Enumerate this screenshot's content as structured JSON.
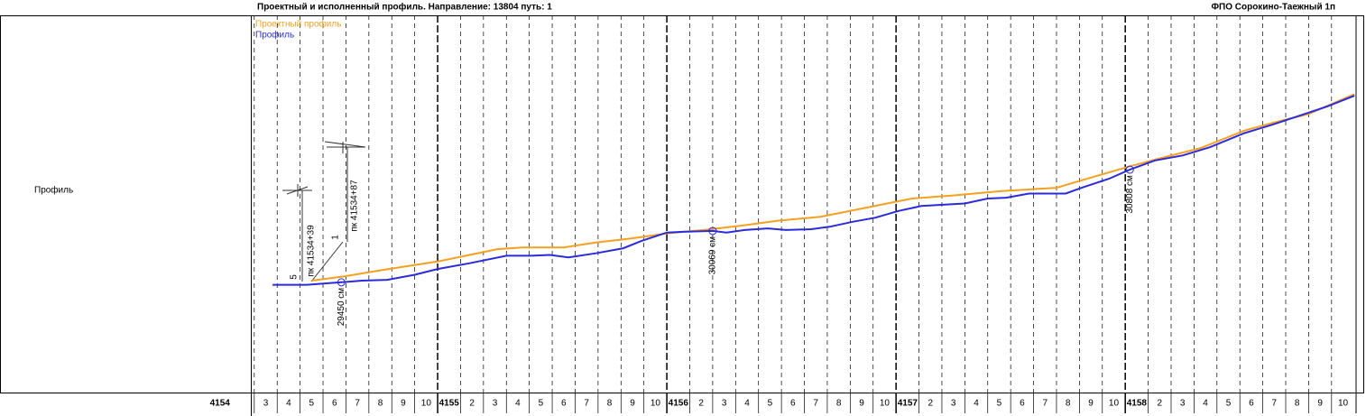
{
  "chart_data": {
    "type": "line",
    "title": "Проектный и исполненный профиль. Направление: 13804 путь: 1",
    "subtitle": "ФПО Сорокино-Таежный 1п",
    "row_label": "Профиль",
    "xlim": [
      1.85,
      50.07
    ],
    "ylim": [
      28120,
      32670
    ],
    "xticks": [
      {
        "value": 0,
        "label": "4154"
      },
      {
        "value": 2,
        "label": "3"
      },
      {
        "value": 3,
        "label": "4"
      },
      {
        "value": 4,
        "label": "5"
      },
      {
        "value": 5,
        "label": "6"
      },
      {
        "value": 6,
        "label": "7"
      },
      {
        "value": 7,
        "label": "8"
      },
      {
        "value": 8,
        "label": "9"
      },
      {
        "value": 9,
        "label": "10"
      },
      {
        "value": 10,
        "label": "4155"
      },
      {
        "value": 11,
        "label": "2"
      },
      {
        "value": 12,
        "label": "3"
      },
      {
        "value": 13,
        "label": "4"
      },
      {
        "value": 14,
        "label": "5"
      },
      {
        "value": 15,
        "label": "6"
      },
      {
        "value": 16,
        "label": "7"
      },
      {
        "value": 17,
        "label": "8"
      },
      {
        "value": 18,
        "label": "9"
      },
      {
        "value": 19,
        "label": "10"
      },
      {
        "value": 20,
        "label": "4156"
      },
      {
        "value": 21,
        "label": "2"
      },
      {
        "value": 22,
        "label": "3"
      },
      {
        "value": 23,
        "label": "4"
      },
      {
        "value": 24,
        "label": "5"
      },
      {
        "value": 25,
        "label": "6"
      },
      {
        "value": 26,
        "label": "7"
      },
      {
        "value": 27,
        "label": "8"
      },
      {
        "value": 28,
        "label": "9"
      },
      {
        "value": 29,
        "label": "10"
      },
      {
        "value": 30,
        "label": "4157"
      },
      {
        "value": 31,
        "label": "2"
      },
      {
        "value": 32,
        "label": "3"
      },
      {
        "value": 33,
        "label": "4"
      },
      {
        "value": 34,
        "label": "5"
      },
      {
        "value": 35,
        "label": "6"
      },
      {
        "value": 36,
        "label": "7"
      },
      {
        "value": 37,
        "label": "8"
      },
      {
        "value": 38,
        "label": "9"
      },
      {
        "value": 39,
        "label": "10"
      },
      {
        "value": 40,
        "label": "4158"
      },
      {
        "value": 41,
        "label": "2"
      },
      {
        "value": 42,
        "label": "3"
      },
      {
        "value": 43,
        "label": "4"
      },
      {
        "value": 44,
        "label": "5"
      },
      {
        "value": 45,
        "label": "6"
      },
      {
        "value": 46,
        "label": "7"
      },
      {
        "value": 47,
        "label": "8"
      },
      {
        "value": 48,
        "label": "9"
      },
      {
        "value": 49,
        "label": "10"
      }
    ],
    "series": [
      {
        "name": "Проектный профиль",
        "color": "#f5a020",
        "x": [
          4.5,
          5.9,
          7.4,
          10.0,
          11.4,
          12.6,
          13.7,
          15.5,
          16.9,
          18.5,
          20.0,
          21.6,
          23.2,
          24.8,
          26.7,
          28.7,
          30.7,
          32.6,
          34.6,
          37.0,
          38.1,
          40.1,
          41.3,
          43.3,
          45.2,
          46.4,
          48.0,
          50.0
        ],
        "values": [
          29470,
          29520,
          29590,
          29700,
          29780,
          29850,
          29870,
          29870,
          29930,
          29980,
          30040,
          30080,
          30130,
          30190,
          30240,
          30350,
          30460,
          30500,
          30550,
          30590,
          30680,
          30840,
          30930,
          31070,
          31280,
          31370,
          31480,
          31720
        ]
      },
      {
        "name": "Профиль",
        "color": "#2b2bdc",
        "x": [
          2.8,
          4.3,
          5.8,
          6.7,
          7.8,
          9.0,
          10.0,
          11.4,
          13.0,
          14.1,
          14.9,
          15.7,
          16.9,
          18.1,
          18.9,
          20.0,
          20.8,
          22.0,
          22.6,
          23.4,
          24.4,
          25.2,
          26.3,
          27.1,
          28.1,
          29.1,
          30.1,
          31.1,
          33.0,
          34.0,
          34.8,
          35.8,
          37.4,
          38.1,
          39.3,
          40.2,
          41.3,
          42.5,
          43.7,
          45.2,
          46.4,
          47.6,
          48.8,
          50.0
        ],
        "values": [
          29420,
          29420,
          29450,
          29470,
          29480,
          29540,
          29610,
          29680,
          29770,
          29770,
          29780,
          29750,
          29800,
          29860,
          29950,
          30050,
          30060,
          30070,
          30050,
          30080,
          30100,
          30080,
          30090,
          30120,
          30180,
          30230,
          30310,
          30370,
          30400,
          30460,
          30470,
          30520,
          30520,
          30590,
          30700,
          30810,
          30920,
          30980,
          31080,
          31250,
          31350,
          31460,
          31570,
          31700
        ]
      }
    ],
    "elevation_marks": [
      {
        "x": 5.8,
        "value": 29450,
        "label": "29450 см"
      },
      {
        "x": 22.0,
        "value": 30069,
        "label": "30069 см"
      },
      {
        "x": 40.2,
        "value": 30808,
        "label": "30808 см"
      }
    ],
    "annotations": [
      "пк 41534+39",
      "пк 41534+87",
      "5",
      "1"
    ]
  }
}
